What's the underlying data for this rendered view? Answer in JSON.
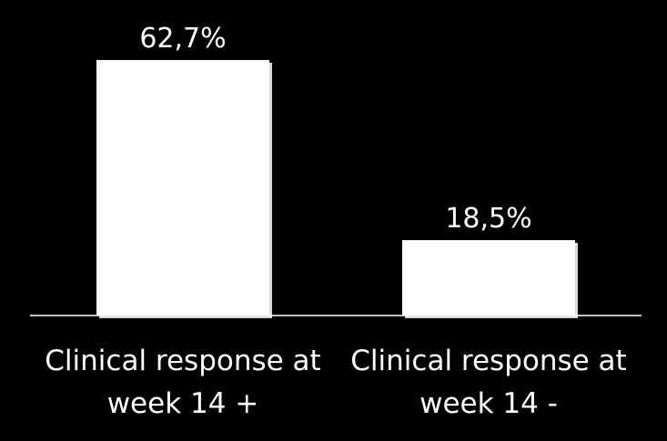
{
  "chart_data": {
    "type": "bar",
    "title": "",
    "xlabel": "",
    "ylabel": "",
    "categories": [
      [
        "Clinical response at",
        "week 14 +"
      ],
      [
        "Clinical response at",
        "week 14 -"
      ]
    ],
    "values": [
      62.7,
      18.5
    ],
    "value_labels": [
      "62,7%",
      "18,5%"
    ],
    "ylim": [
      0,
      62.7
    ],
    "grid": false,
    "legend": "none"
  },
  "colors": {
    "background": "#000000",
    "bar": "#ffffff",
    "text": "#ffffff",
    "axis": "#ffffff"
  }
}
